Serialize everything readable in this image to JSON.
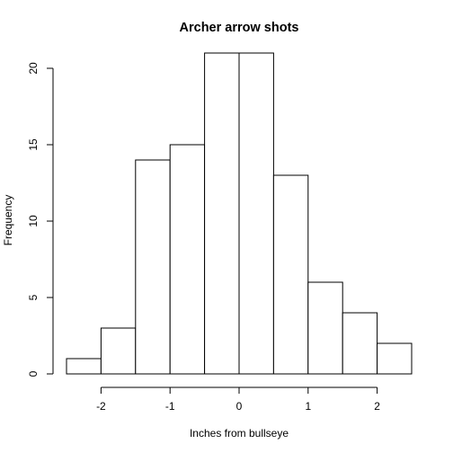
{
  "chart_data": {
    "type": "bar",
    "subtype": "histogram",
    "title": "Archer arrow shots",
    "xlabel": "Inches from bullseye",
    "ylabel": "Frequency",
    "bins": [
      {
        "start": -2.5,
        "end": -2.0,
        "count": 1
      },
      {
        "start": -2.0,
        "end": -1.5,
        "count": 3
      },
      {
        "start": -1.5,
        "end": -1.0,
        "count": 14
      },
      {
        "start": -1.0,
        "end": -0.5,
        "count": 15
      },
      {
        "start": -0.5,
        "end": 0.0,
        "count": 21
      },
      {
        "start": 0.0,
        "end": 0.5,
        "count": 21
      },
      {
        "start": 0.5,
        "end": 1.0,
        "count": 13
      },
      {
        "start": 1.0,
        "end": 1.5,
        "count": 6
      },
      {
        "start": 1.5,
        "end": 2.0,
        "count": 4
      },
      {
        "start": 2.0,
        "end": 2.5,
        "count": 2
      }
    ],
    "xlim": [
      -2.5,
      2.5
    ],
    "ylim": [
      0,
      21
    ],
    "xticks": [
      -2,
      -1,
      0,
      1,
      2
    ],
    "xtick_labels": [
      "-2",
      "-1",
      "0",
      "1",
      "2"
    ],
    "yticks": [
      0,
      5,
      10,
      15,
      20
    ],
    "ytick_labels": [
      "0",
      "5",
      "10",
      "15",
      "20"
    ],
    "grid": false,
    "legend": "none",
    "bar_fill": "#ffffff",
    "bar_stroke": "#000000"
  }
}
